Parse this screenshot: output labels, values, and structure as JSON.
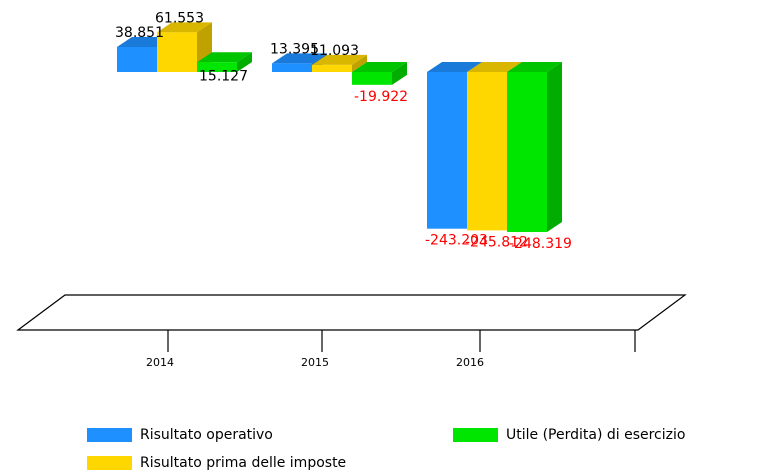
{
  "chart_data": {
    "type": "bar",
    "categories": [
      "2014",
      "2015",
      "2016"
    ],
    "series": [
      {
        "name": "Risultato operativo",
        "color": "#1e90ff",
        "values": [
          38851,
          13395,
          -243203
        ],
        "value_labels": [
          "38.851",
          "13.395",
          "-243.203"
        ]
      },
      {
        "name": "Risultato prima delle imposte",
        "color": "#ffd700",
        "values": [
          61553,
          11093,
          -245812
        ],
        "value_labels": [
          "61.553",
          "11.093",
          "-245.812"
        ]
      },
      {
        "name": "Utile (Perdita) di esercizio",
        "color": "#00e600",
        "values": [
          15127,
          -19922,
          -248319
        ],
        "value_labels": [
          "15.127",
          "-19.922",
          "-248.319"
        ]
      }
    ],
    "legend": "bottom"
  }
}
